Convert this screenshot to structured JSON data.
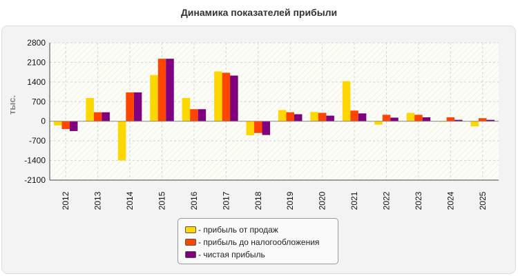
{
  "chart_data": {
    "type": "bar",
    "title": "Динамика показателей прибыли",
    "ylabel": "тыс.",
    "xlabel": "",
    "ylim": [
      -2100,
      2800
    ],
    "yticks": [
      2800,
      2100,
      1400,
      700,
      0,
      -700,
      -1400,
      -2100
    ],
    "categories": [
      "2012",
      "2013",
      "2014",
      "2015",
      "2016",
      "2017",
      "2018",
      "2019",
      "2020",
      "2021",
      "2022",
      "2023",
      "2024",
      "2025"
    ],
    "series": [
      {
        "name": "- прибыль от продаж",
        "color": "#FFD700",
        "values": [
          -150,
          830,
          -1400,
          1650,
          830,
          1780,
          -500,
          400,
          330,
          1430,
          -120,
          300,
          -20,
          -180
        ]
      },
      {
        "name": "- прибыль до налогообложения",
        "color": "#FF4500",
        "values": [
          -280,
          320,
          1030,
          2230,
          430,
          1730,
          -420,
          320,
          300,
          380,
          230,
          230,
          140,
          110
        ]
      },
      {
        "name": "- чистая прибыль",
        "color": "#800080",
        "values": [
          -350,
          320,
          1030,
          2230,
          430,
          1630,
          -490,
          250,
          200,
          280,
          130,
          140,
          50,
          50
        ]
      }
    ],
    "grid": true,
    "legend_position": "bottom-center"
  }
}
